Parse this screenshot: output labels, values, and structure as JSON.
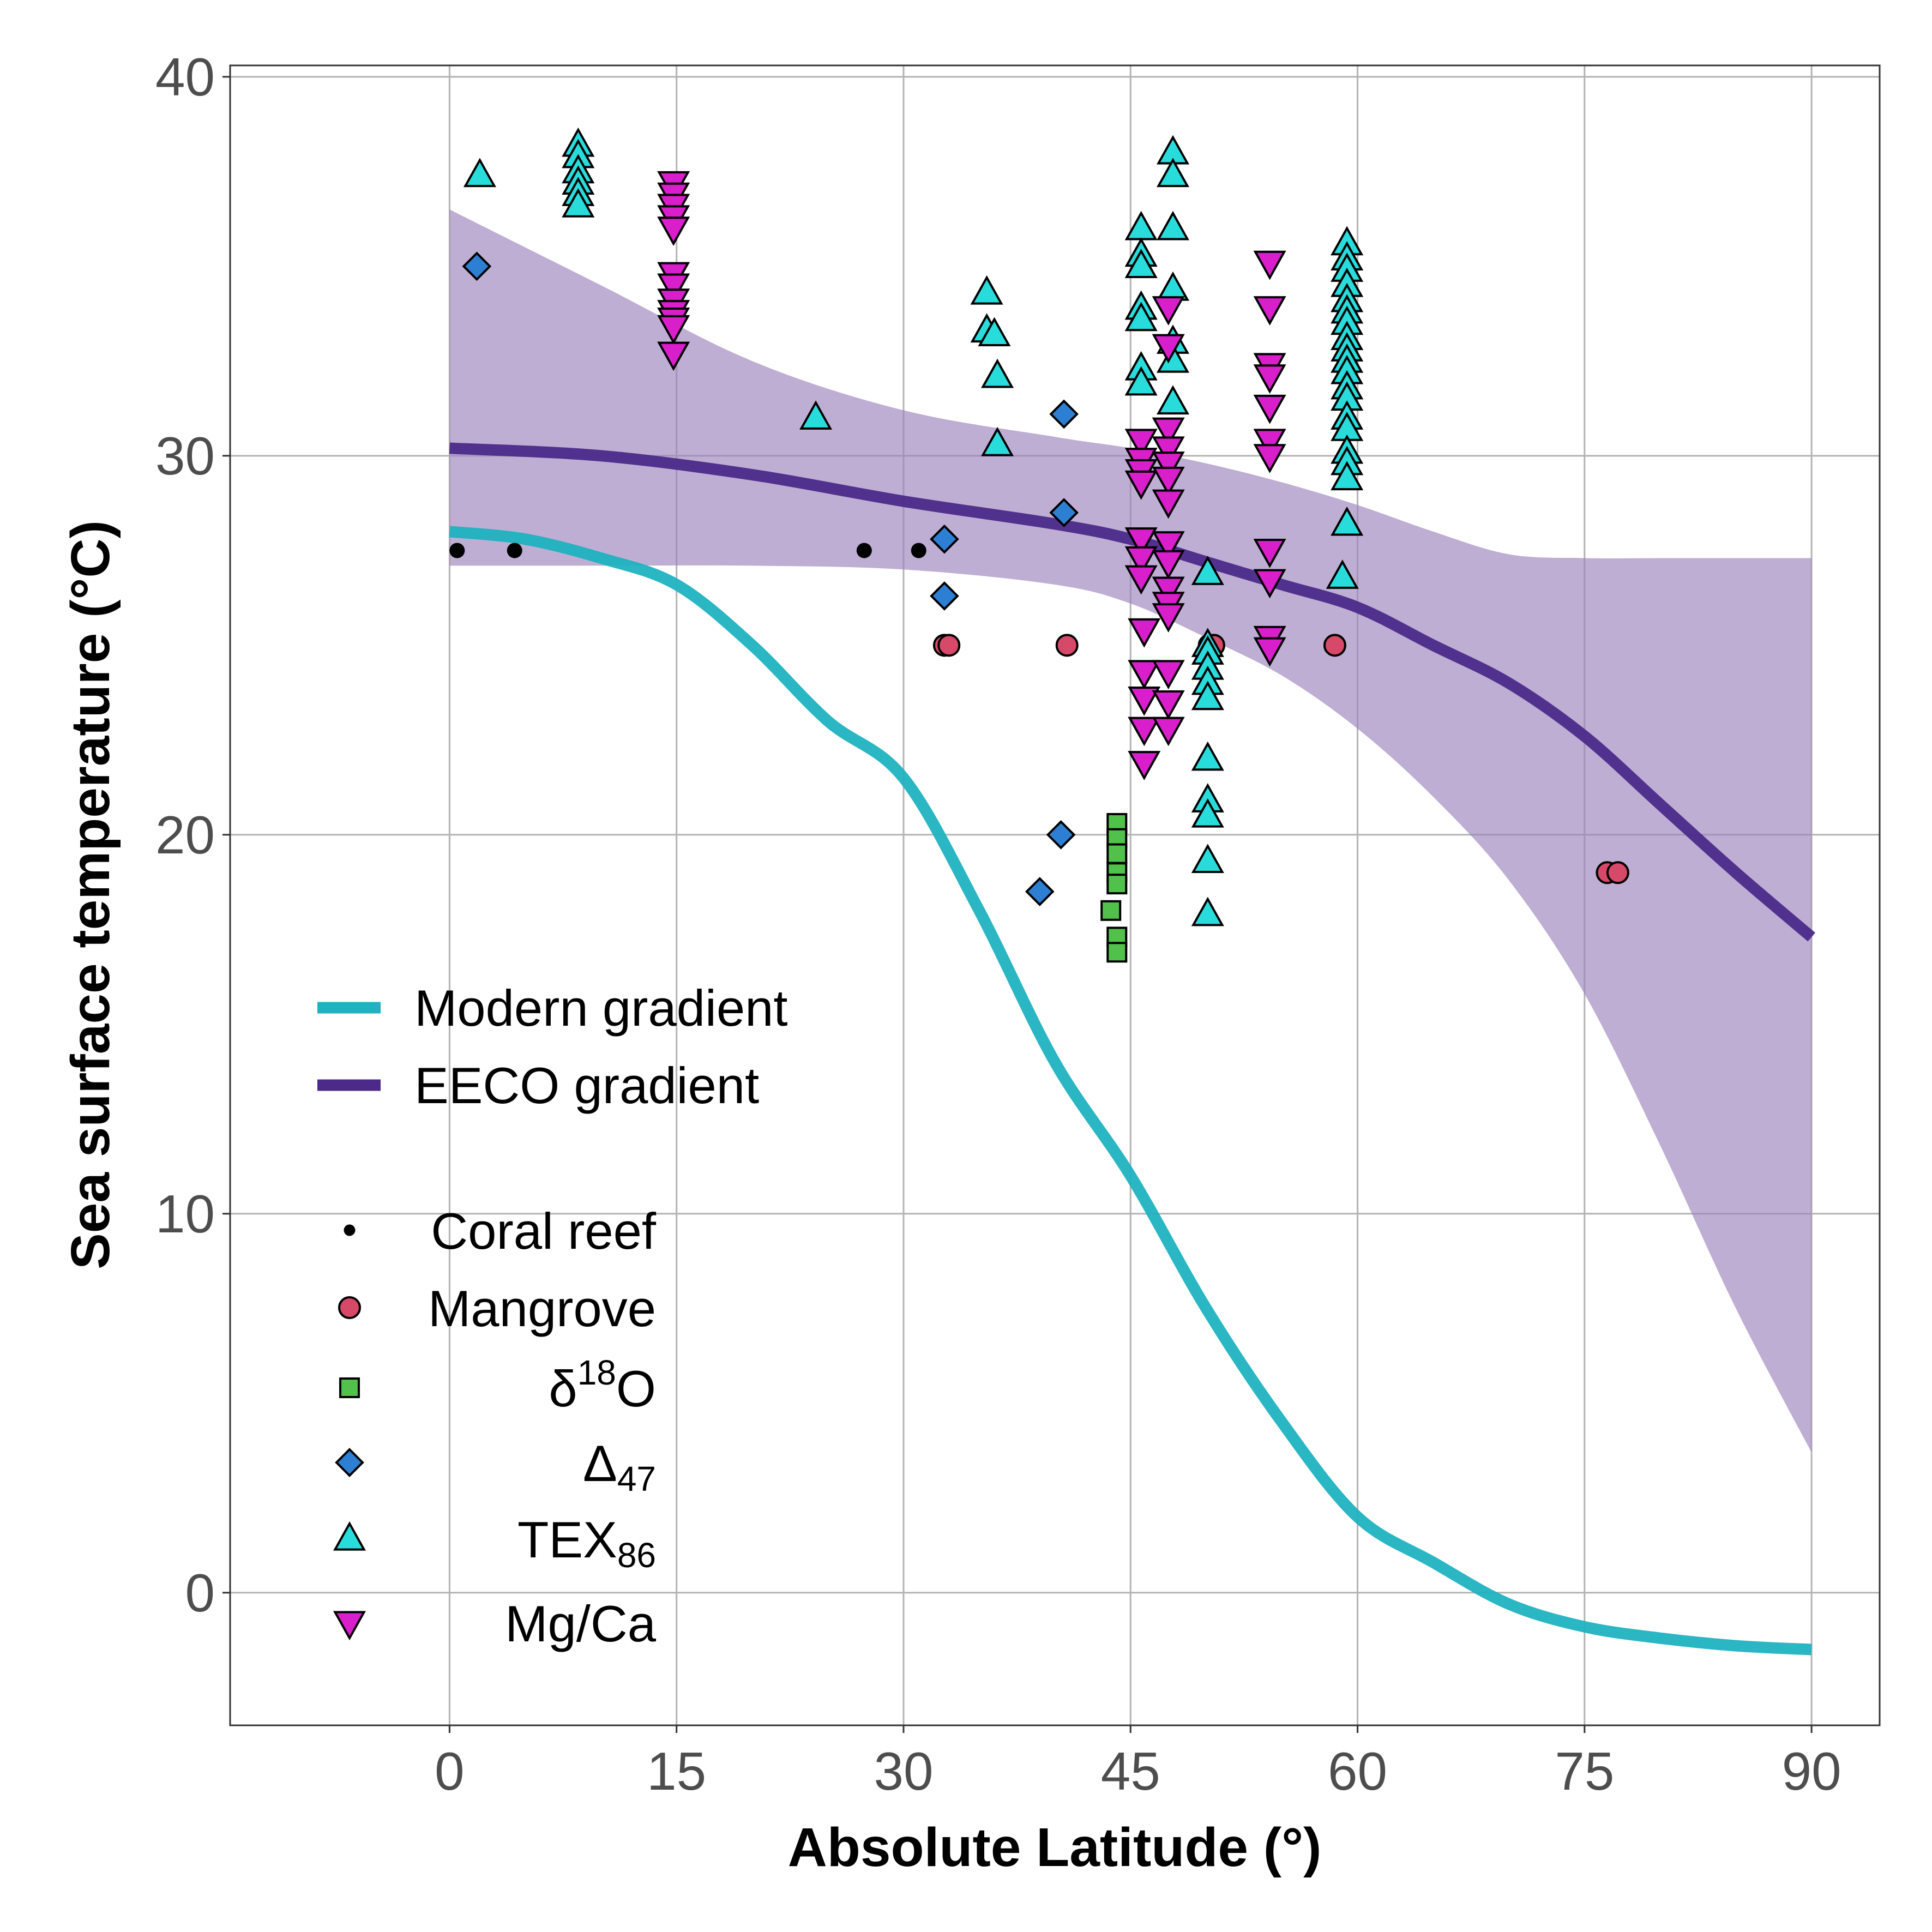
{
  "chart_data": {
    "type": "scatter",
    "xlabel": "Absolute Latitude (°)",
    "ylabel": "Sea surface temperature (°C)",
    "xlim": [
      -14.5,
      94.5
    ],
    "ylim": [
      -3.5,
      40.3
    ],
    "x_ticks": [
      0,
      15,
      30,
      45,
      60,
      75,
      90
    ],
    "y_ticks": [
      0,
      10,
      20,
      30,
      40
    ],
    "grid": true,
    "legend_placement": "left-center",
    "lines": [
      {
        "name": "Modern gradient",
        "color": "#1fb2c0",
        "x": [
          0,
          5,
          10,
          15,
          20,
          25,
          30,
          35,
          40,
          45,
          50,
          55,
          60,
          65,
          70,
          75,
          80,
          85,
          90
        ],
        "y": [
          28.0,
          27.8,
          27.3,
          26.6,
          25.0,
          23.0,
          21.5,
          18.0,
          14.0,
          11.0,
          7.5,
          4.5,
          2.0,
          0.8,
          -0.3,
          -0.9,
          -1.2,
          -1.4,
          -1.5
        ]
      },
      {
        "name": "EECO gradient",
        "color": "#4b2a8a",
        "x": [
          0,
          10,
          20,
          30,
          40,
          45,
          50,
          55,
          60,
          65,
          70,
          75,
          80,
          85,
          90
        ],
        "y": [
          30.2,
          30.0,
          29.5,
          28.8,
          28.2,
          27.8,
          27.2,
          26.6,
          26.0,
          25.0,
          24.0,
          22.6,
          20.8,
          19.0,
          17.3
        ]
      }
    ],
    "band": {
      "color": "#9c83bb",
      "x": [
        0,
        10,
        20,
        30,
        40,
        45,
        50,
        55,
        60,
        65,
        70,
        75,
        80,
        85,
        90
      ],
      "upper": [
        36.5,
        34.5,
        32.5,
        31.2,
        30.5,
        30.2,
        29.8,
        29.3,
        28.7,
        28.0,
        27.4,
        27.3,
        27.3,
        27.3,
        27.3
      ],
      "lower": [
        27.1,
        27.1,
        27.1,
        27.0,
        26.6,
        26.1,
        25.2,
        24.2,
        22.8,
        21.0,
        18.8,
        15.8,
        11.8,
        7.5,
        3.7
      ]
    },
    "series": [
      {
        "name": "Coral reef",
        "marker": "dot",
        "color": "#000000",
        "points": [
          [
            0.5,
            27.5
          ],
          [
            4.3,
            27.5
          ],
          [
            27.4,
            27.5
          ],
          [
            31.0,
            27.5
          ]
        ]
      },
      {
        "name": "Mangrove",
        "marker": "circle",
        "color": "#d64968",
        "points": [
          [
            32.7,
            25.0
          ],
          [
            33.0,
            25.0
          ],
          [
            40.8,
            25.0
          ],
          [
            50.2,
            25.0
          ],
          [
            50.5,
            25.0
          ],
          [
            58.5,
            25.0
          ],
          [
            76.5,
            19.0
          ],
          [
            77.2,
            19.0
          ]
        ]
      },
      {
        "name": "δ18O",
        "name_parts": [
          "δ",
          "18",
          "O"
        ],
        "marker": "square",
        "color": "#52c14b",
        "points": [
          [
            44.1,
            20.3
          ],
          [
            44.1,
            19.9
          ],
          [
            44.1,
            19.5
          ],
          [
            44.1,
            19.0
          ],
          [
            44.1,
            18.7
          ],
          [
            43.7,
            18.0
          ],
          [
            44.1,
            17.3
          ],
          [
            44.1,
            16.9
          ]
        ]
      },
      {
        "name": "Δ47",
        "name_parts": [
          "Δ",
          "47"
        ],
        "marker": "diamond",
        "color": "#2d7fd3",
        "points": [
          [
            1.8,
            35.0
          ],
          [
            32.7,
            27.8
          ],
          [
            32.7,
            26.3
          ],
          [
            40.6,
            31.1
          ],
          [
            40.6,
            28.5
          ],
          [
            40.4,
            20.0
          ],
          [
            39.0,
            18.5
          ]
        ]
      },
      {
        "name": "TEX86",
        "name_parts": [
          "TEX",
          "86"
        ],
        "marker": "triangle-up",
        "color": "#28dcdc",
        "points": [
          [
            2.0,
            37.4
          ],
          [
            8.5,
            38.2
          ],
          [
            8.5,
            37.9
          ],
          [
            8.5,
            37.5
          ],
          [
            8.5,
            37.2
          ],
          [
            8.5,
            36.9
          ],
          [
            8.5,
            36.6
          ],
          [
            24.2,
            31.0
          ],
          [
            35.5,
            34.3
          ],
          [
            35.5,
            33.3
          ],
          [
            36.0,
            33.2
          ],
          [
            36.2,
            32.1
          ],
          [
            36.2,
            30.3
          ],
          [
            45.7,
            36.0
          ],
          [
            45.7,
            35.3
          ],
          [
            45.7,
            35.0
          ],
          [
            45.7,
            33.9
          ],
          [
            45.7,
            33.6
          ],
          [
            45.7,
            32.3
          ],
          [
            45.7,
            31.9
          ],
          [
            47.8,
            38.0
          ],
          [
            47.8,
            37.4
          ],
          [
            47.8,
            36.0
          ],
          [
            47.8,
            34.4
          ],
          [
            47.8,
            33.0
          ],
          [
            47.8,
            32.5
          ],
          [
            47.8,
            31.4
          ],
          [
            50.1,
            26.9
          ],
          [
            50.1,
            25.0
          ],
          [
            50.1,
            24.8
          ],
          [
            50.1,
            24.4
          ],
          [
            50.1,
            24.0
          ],
          [
            50.1,
            23.6
          ],
          [
            50.1,
            22.0
          ],
          [
            50.1,
            20.9
          ],
          [
            50.1,
            20.5
          ],
          [
            50.1,
            19.3
          ],
          [
            50.1,
            17.9
          ],
          [
            59.3,
            35.6
          ],
          [
            59.3,
            35.2
          ],
          [
            59.3,
            34.9
          ],
          [
            59.3,
            34.5
          ],
          [
            59.3,
            34.1
          ],
          [
            59.3,
            33.8
          ],
          [
            59.3,
            33.5
          ],
          [
            59.3,
            33.1
          ],
          [
            59.3,
            32.8
          ],
          [
            59.3,
            32.5
          ],
          [
            59.3,
            32.2
          ],
          [
            59.3,
            31.8
          ],
          [
            59.3,
            31.5
          ],
          [
            59.3,
            31.0
          ],
          [
            59.3,
            30.7
          ],
          [
            59.3,
            30.1
          ],
          [
            59.3,
            29.8
          ],
          [
            59.3,
            29.4
          ],
          [
            59.3,
            28.2
          ],
          [
            59.0,
            26.8
          ]
        ]
      },
      {
        "name": "Mg/Ca",
        "marker": "triangle-down",
        "color": "#d91ecb",
        "points": [
          [
            14.8,
            37.2
          ],
          [
            14.8,
            36.9
          ],
          [
            14.8,
            36.6
          ],
          [
            14.8,
            36.3
          ],
          [
            14.8,
            36.0
          ],
          [
            14.8,
            34.8
          ],
          [
            14.8,
            34.5
          ],
          [
            14.8,
            34.1
          ],
          [
            14.8,
            33.8
          ],
          [
            14.8,
            33.6
          ],
          [
            14.8,
            33.4
          ],
          [
            14.8,
            32.7
          ],
          [
            45.7,
            30.4
          ],
          [
            45.7,
            29.9
          ],
          [
            45.7,
            29.6
          ],
          [
            45.7,
            29.3
          ],
          [
            45.7,
            27.8
          ],
          [
            45.7,
            27.3
          ],
          [
            45.7,
            26.8
          ],
          [
            45.9,
            25.4
          ],
          [
            45.9,
            24.3
          ],
          [
            45.9,
            23.6
          ],
          [
            45.9,
            22.8
          ],
          [
            45.9,
            21.9
          ],
          [
            47.5,
            33.9
          ],
          [
            47.5,
            32.9
          ],
          [
            47.5,
            30.7
          ],
          [
            47.5,
            30.2
          ],
          [
            47.5,
            29.8
          ],
          [
            47.5,
            29.4
          ],
          [
            47.5,
            28.8
          ],
          [
            47.5,
            27.7
          ],
          [
            47.5,
            27.2
          ],
          [
            47.5,
            26.5
          ],
          [
            47.5,
            26.1
          ],
          [
            47.5,
            25.8
          ],
          [
            47.5,
            24.3
          ],
          [
            47.5,
            23.5
          ],
          [
            47.5,
            22.8
          ],
          [
            54.2,
            35.1
          ],
          [
            54.2,
            33.9
          ],
          [
            54.2,
            32.4
          ],
          [
            54.2,
            32.1
          ],
          [
            54.2,
            31.3
          ],
          [
            54.2,
            30.4
          ],
          [
            54.2,
            30.0
          ],
          [
            54.2,
            27.5
          ],
          [
            54.2,
            26.7
          ],
          [
            54.2,
            25.2
          ],
          [
            54.2,
            24.9
          ]
        ]
      }
    ]
  }
}
